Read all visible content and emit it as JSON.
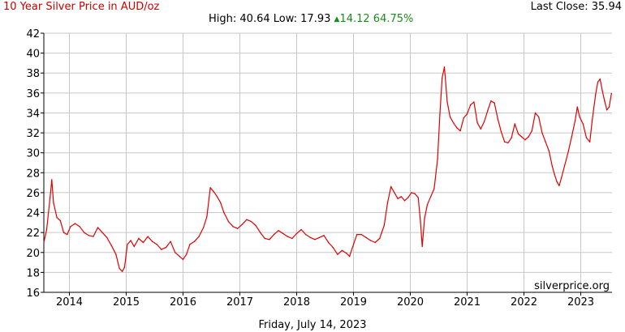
{
  "header": {
    "title": "10 Year Silver Price in AUD/oz",
    "last_close": "Last Close: 35.94",
    "high_label": "High: 40.64",
    "low_label": "Low: 17.93",
    "change_value": "14.12",
    "change_percent": "64.75%"
  },
  "footer": {
    "date": "Friday, July 14, 2023"
  },
  "colors": {
    "line": "#e00000",
    "title": "#cc0000",
    "change": "#1a8a1a",
    "grid": "#c8c8c8",
    "axis": "#000000"
  },
  "chart_data": {
    "type": "line",
    "title": "10 Year Silver Price in AUD/oz",
    "xlabel": "",
    "ylabel": "",
    "watermark": "silverprice.org",
    "grid": true,
    "xlim": [
      2013.55,
      2023.55
    ],
    "ylim": [
      16,
      42
    ],
    "y_ticks": [
      16,
      18,
      20,
      22,
      24,
      26,
      28,
      30,
      32,
      34,
      36,
      38,
      40,
      42
    ],
    "x_ticks": [
      2014,
      2015,
      2016,
      2017,
      2018,
      2019,
      2020,
      2021,
      2022,
      2023
    ],
    "series": [
      {
        "points": [
          [
            2013.55,
            21.0
          ],
          [
            2013.6,
            22.3
          ],
          [
            2013.66,
            25.5
          ],
          [
            2013.69,
            27.3
          ],
          [
            2013.72,
            25.0
          ],
          [
            2013.78,
            23.5
          ],
          [
            2013.84,
            23.2
          ],
          [
            2013.9,
            22.0
          ],
          [
            2013.96,
            21.8
          ],
          [
            2014.02,
            22.6
          ],
          [
            2014.1,
            22.9
          ],
          [
            2014.18,
            22.6
          ],
          [
            2014.26,
            22.0
          ],
          [
            2014.34,
            21.7
          ],
          [
            2014.42,
            21.6
          ],
          [
            2014.5,
            22.5
          ],
          [
            2014.58,
            22.0
          ],
          [
            2014.66,
            21.5
          ],
          [
            2014.74,
            20.7
          ],
          [
            2014.82,
            19.8
          ],
          [
            2014.88,
            18.4
          ],
          [
            2014.93,
            18.1
          ],
          [
            2014.97,
            18.5
          ],
          [
            2015.02,
            20.8
          ],
          [
            2015.08,
            21.2
          ],
          [
            2015.14,
            20.6
          ],
          [
            2015.22,
            21.4
          ],
          [
            2015.3,
            21.0
          ],
          [
            2015.38,
            21.6
          ],
          [
            2015.46,
            21.1
          ],
          [
            2015.54,
            20.8
          ],
          [
            2015.62,
            20.3
          ],
          [
            2015.7,
            20.5
          ],
          [
            2015.78,
            21.1
          ],
          [
            2015.86,
            20.0
          ],
          [
            2015.94,
            19.6
          ],
          [
            2016.0,
            19.3
          ],
          [
            2016.06,
            19.8
          ],
          [
            2016.12,
            20.8
          ],
          [
            2016.2,
            21.1
          ],
          [
            2016.28,
            21.6
          ],
          [
            2016.36,
            22.5
          ],
          [
            2016.42,
            23.6
          ],
          [
            2016.48,
            26.5
          ],
          [
            2016.54,
            26.1
          ],
          [
            2016.6,
            25.6
          ],
          [
            2016.66,
            25.0
          ],
          [
            2016.72,
            24.0
          ],
          [
            2016.8,
            23.1
          ],
          [
            2016.88,
            22.6
          ],
          [
            2016.96,
            22.4
          ],
          [
            2017.04,
            22.8
          ],
          [
            2017.12,
            23.3
          ],
          [
            2017.2,
            23.1
          ],
          [
            2017.28,
            22.7
          ],
          [
            2017.36,
            22.0
          ],
          [
            2017.44,
            21.4
          ],
          [
            2017.52,
            21.3
          ],
          [
            2017.6,
            21.8
          ],
          [
            2017.68,
            22.2
          ],
          [
            2017.76,
            21.9
          ],
          [
            2017.84,
            21.6
          ],
          [
            2017.92,
            21.4
          ],
          [
            2018.0,
            21.9
          ],
          [
            2018.08,
            22.3
          ],
          [
            2018.16,
            21.8
          ],
          [
            2018.24,
            21.5
          ],
          [
            2018.32,
            21.3
          ],
          [
            2018.4,
            21.5
          ],
          [
            2018.48,
            21.7
          ],
          [
            2018.56,
            21.0
          ],
          [
            2018.64,
            20.5
          ],
          [
            2018.72,
            19.8
          ],
          [
            2018.8,
            20.2
          ],
          [
            2018.88,
            19.9
          ],
          [
            2018.93,
            19.6
          ],
          [
            2019.0,
            20.8
          ],
          [
            2019.06,
            21.8
          ],
          [
            2019.14,
            21.8
          ],
          [
            2019.22,
            21.5
          ],
          [
            2019.3,
            21.2
          ],
          [
            2019.38,
            21.0
          ],
          [
            2019.46,
            21.4
          ],
          [
            2019.54,
            22.7
          ],
          [
            2019.6,
            25.0
          ],
          [
            2019.66,
            26.6
          ],
          [
            2019.72,
            26.0
          ],
          [
            2019.78,
            25.4
          ],
          [
            2019.84,
            25.6
          ],
          [
            2019.9,
            25.2
          ],
          [
            2019.96,
            25.5
          ],
          [
            2020.02,
            26.0
          ],
          [
            2020.08,
            25.9
          ],
          [
            2020.14,
            25.5
          ],
          [
            2020.18,
            23.0
          ],
          [
            2020.21,
            20.6
          ],
          [
            2020.25,
            23.4
          ],
          [
            2020.3,
            24.8
          ],
          [
            2020.36,
            25.6
          ],
          [
            2020.42,
            26.4
          ],
          [
            2020.48,
            29.4
          ],
          [
            2020.52,
            33.8
          ],
          [
            2020.56,
            37.5
          ],
          [
            2020.6,
            38.6
          ],
          [
            2020.65,
            35.1
          ],
          [
            2020.7,
            33.6
          ],
          [
            2020.76,
            33.0
          ],
          [
            2020.82,
            32.5
          ],
          [
            2020.88,
            32.2
          ],
          [
            2020.94,
            33.5
          ],
          [
            2021.0,
            33.9
          ],
          [
            2021.06,
            34.8
          ],
          [
            2021.12,
            35.1
          ],
          [
            2021.18,
            33.0
          ],
          [
            2021.24,
            32.4
          ],
          [
            2021.3,
            33.1
          ],
          [
            2021.36,
            34.2
          ],
          [
            2021.42,
            35.2
          ],
          [
            2021.48,
            35.0
          ],
          [
            2021.54,
            33.4
          ],
          [
            2021.6,
            32.1
          ],
          [
            2021.66,
            31.1
          ],
          [
            2021.72,
            31.0
          ],
          [
            2021.78,
            31.5
          ],
          [
            2021.84,
            32.9
          ],
          [
            2021.9,
            31.9
          ],
          [
            2021.96,
            31.6
          ],
          [
            2022.02,
            31.3
          ],
          [
            2022.08,
            31.6
          ],
          [
            2022.14,
            32.2
          ],
          [
            2022.2,
            34.0
          ],
          [
            2022.26,
            33.6
          ],
          [
            2022.32,
            32.0
          ],
          [
            2022.38,
            31.1
          ],
          [
            2022.44,
            30.2
          ],
          [
            2022.5,
            28.6
          ],
          [
            2022.54,
            27.8
          ],
          [
            2022.58,
            27.1
          ],
          [
            2022.62,
            26.7
          ],
          [
            2022.66,
            27.5
          ],
          [
            2022.72,
            28.8
          ],
          [
            2022.78,
            30.1
          ],
          [
            2022.84,
            31.6
          ],
          [
            2022.9,
            33.2
          ],
          [
            2022.94,
            34.6
          ],
          [
            2022.98,
            33.6
          ],
          [
            2023.04,
            32.9
          ],
          [
            2023.1,
            31.5
          ],
          [
            2023.16,
            31.1
          ],
          [
            2023.2,
            33.2
          ],
          [
            2023.26,
            35.8
          ],
          [
            2023.3,
            37.1
          ],
          [
            2023.34,
            37.4
          ],
          [
            2023.38,
            36.2
          ],
          [
            2023.42,
            35.2
          ],
          [
            2023.46,
            34.3
          ],
          [
            2023.5,
            34.6
          ],
          [
            2023.54,
            35.94
          ]
        ]
      }
    ]
  }
}
